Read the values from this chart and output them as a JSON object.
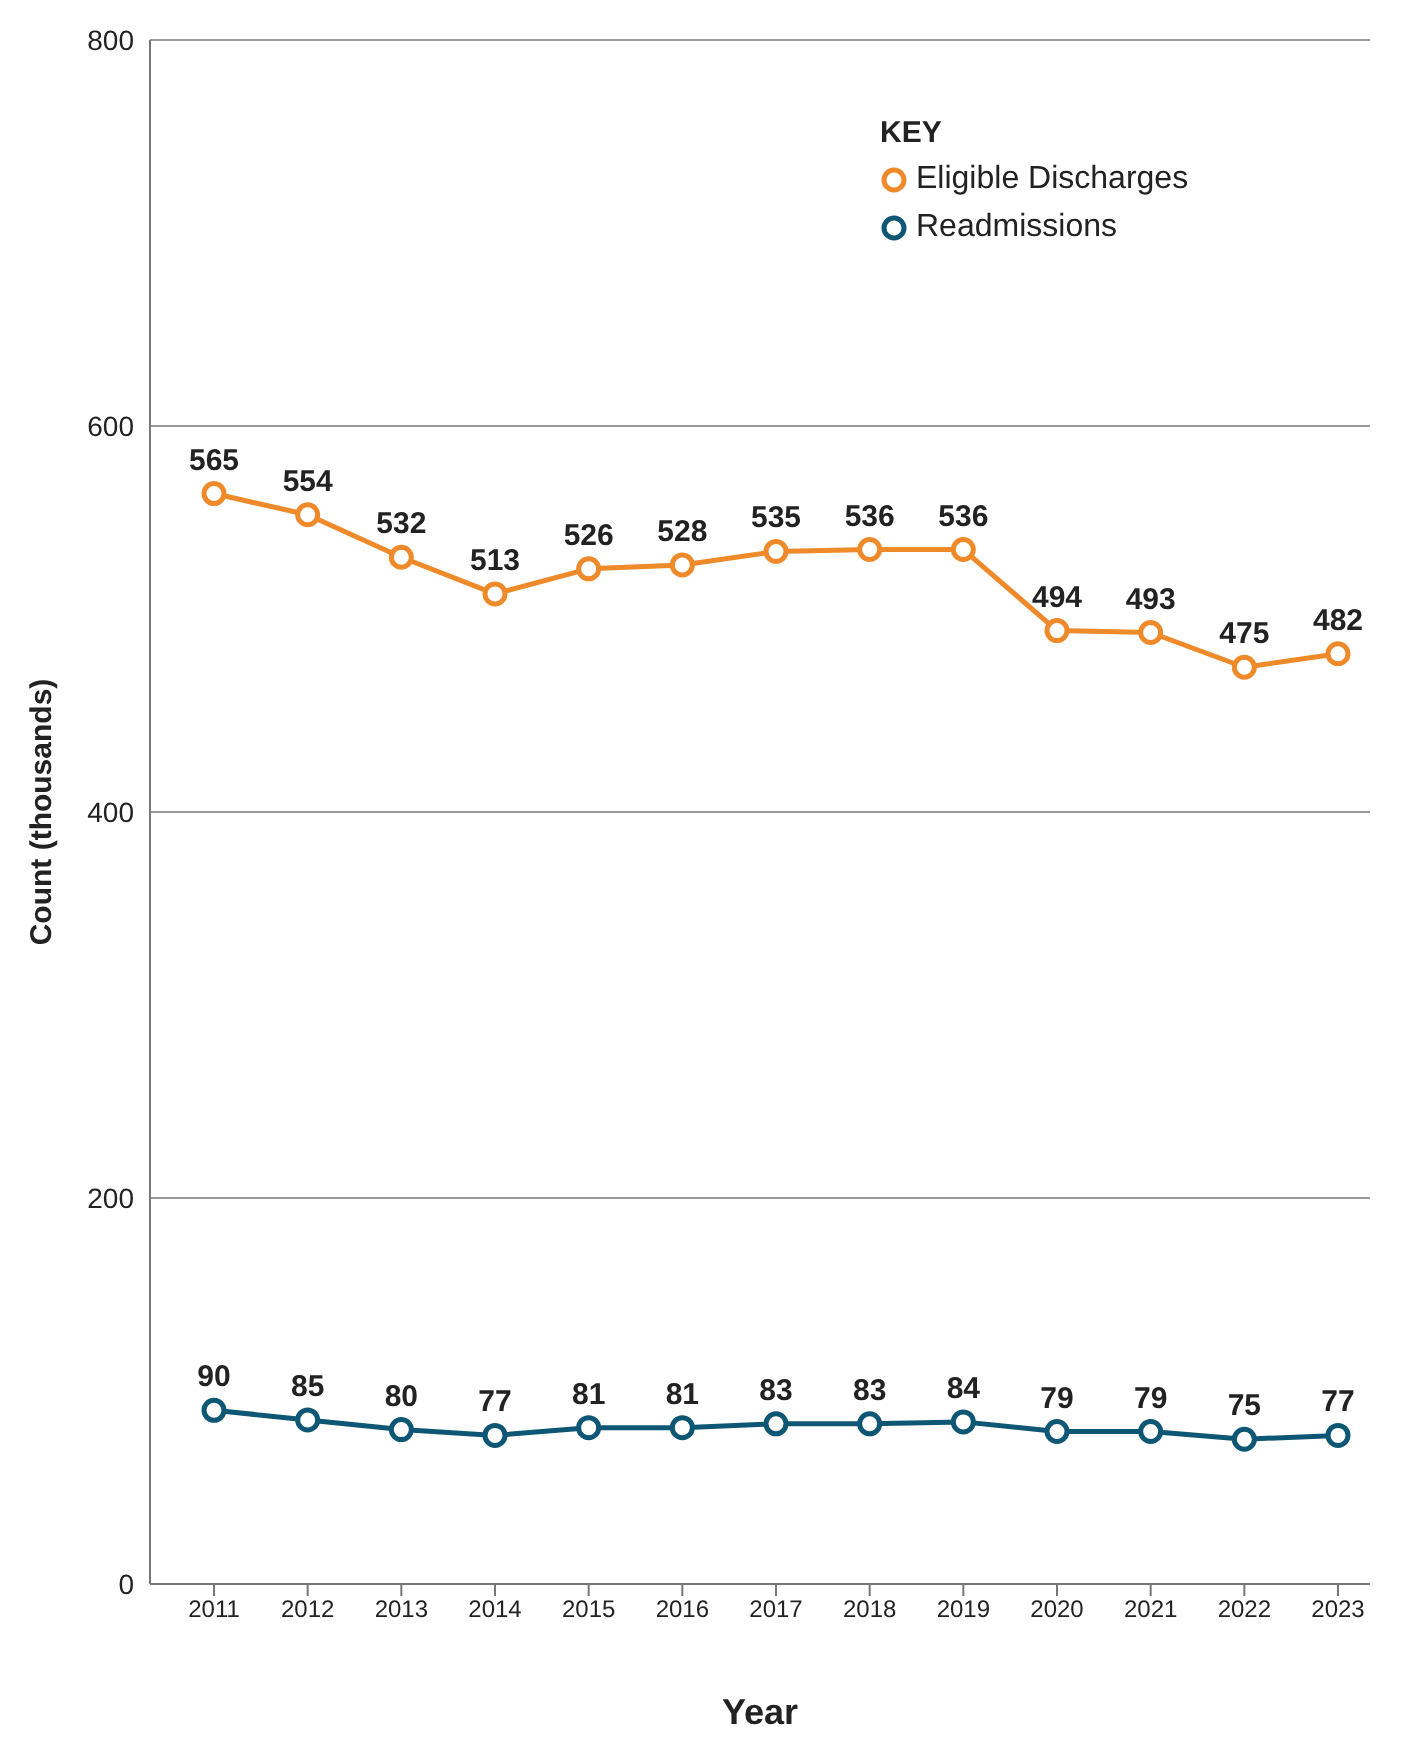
{
  "chart_data": {
    "type": "line",
    "xlabel": "Year",
    "ylabel": "Count (thousands)",
    "legend_title": "KEY",
    "categories": [
      "2011",
      "2012",
      "2013",
      "2014",
      "2015",
      "2016",
      "2017",
      "2018",
      "2019",
      "2020",
      "2021",
      "2022",
      "2023"
    ],
    "series": [
      {
        "name": "Eligible Discharges",
        "color": "#ef8a2a",
        "values": [
          565,
          554,
          532,
          513,
          526,
          528,
          535,
          536,
          536,
          494,
          493,
          475,
          482
        ]
      },
      {
        "name": "Readmissions",
        "color": "#0e5774",
        "values": [
          90,
          85,
          80,
          77,
          81,
          81,
          83,
          83,
          84,
          79,
          79,
          75,
          77
        ]
      }
    ],
    "ylim": [
      0,
      800
    ],
    "yticks": [
      0,
      200,
      400,
      600,
      800
    ],
    "grid": "y",
    "legend": "top right",
    "marker": "circle",
    "line_style": "solid",
    "data_labels": true
  }
}
